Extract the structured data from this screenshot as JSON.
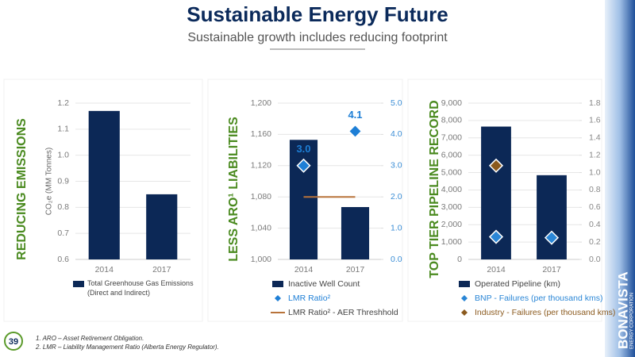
{
  "header": {
    "title": "Sustainable Energy Future",
    "subtitle": "Sustainable growth includes reducing footprint"
  },
  "chart_data": [
    {
      "type": "bar",
      "side_title": "REDUCING EMISSIONS",
      "y_label": "CO₂e (MM Tonnes)",
      "categories": [
        "2014",
        "2017"
      ],
      "series": [
        {
          "name": "Total Greenhouse Gas Emissions (Direct and Indirect)",
          "type": "bar",
          "color": "#0c2856",
          "values": [
            1.17,
            0.85
          ]
        }
      ],
      "ylim": [
        0.6,
        1.2
      ],
      "yticks": [
        0.6,
        0.7,
        0.8,
        0.9,
        {
          "value": 1,
          "label": "1.0"
        },
        1.1,
        1.2
      ],
      "grid": true
    },
    {
      "type": "bar",
      "side_title": "LESS ARO¹ LIABILITIES",
      "categories": [
        "2014",
        "2017"
      ],
      "series": [
        {
          "name": "Inactive Well Count",
          "type": "bar",
          "color": "#0c2856",
          "values": [
            1153,
            1067
          ]
        },
        {
          "name": "LMR Ratio²",
          "type": "scatter",
          "axis": "y2",
          "color": "#1e7fd6",
          "values": [
            3.0,
            4.1
          ],
          "value_labels": [
            "3.0",
            "4.1"
          ]
        },
        {
          "name": "LMR Ratio² - AER Threshhold",
          "type": "line",
          "axis": "y2",
          "color": "#b8733a",
          "values": [
            2,
            2
          ]
        }
      ],
      "ylim": [
        1000,
        1200
      ],
      "yticks": [
        {
          "value": 1000,
          "label": "1,000"
        },
        {
          "value": 1040,
          "label": "1,040"
        },
        {
          "value": 1080,
          "label": "1,080"
        },
        {
          "value": 1120,
          "label": "1,120"
        },
        {
          "value": 1160,
          "label": "1,160"
        },
        {
          "value": 1200,
          "label": "1,200"
        }
      ],
      "y2lim": [
        0,
        5
      ],
      "y2ticks": [
        {
          "value": 0,
          "label": "0.0"
        },
        {
          "value": 1,
          "label": "1.0"
        },
        {
          "value": 2,
          "label": "2.0"
        },
        {
          "value": 3,
          "label": "3.0"
        },
        {
          "value": 4,
          "label": "4.0"
        },
        {
          "value": 5,
          "label": "5.0"
        }
      ],
      "y2tick_color": "#3b8ed6",
      "grid": true
    },
    {
      "type": "bar",
      "side_title": "TOP TIER PIPELINE RECORD",
      "categories": [
        "2014",
        "2017"
      ],
      "series": [
        {
          "name": "Operated Pipeline (km)",
          "type": "bar",
          "color": "#0c2856",
          "values": [
            7650,
            4850
          ]
        },
        {
          "name": "BNP - Failures (per thousand kms)",
          "type": "scatter",
          "axis": "y2",
          "color": "#2a86d6",
          "values": [
            0.26,
            0.25
          ]
        },
        {
          "name": "Industry - Failures (per thousand kms)",
          "type": "scatter",
          "axis": "y2",
          "color": "#8b5a1e",
          "values": [
            1.08,
            null
          ]
        }
      ],
      "ylim": [
        0,
        9000
      ],
      "yticks": [
        0,
        {
          "value": 1000,
          "label": "1,000"
        },
        {
          "value": 2000,
          "label": "2,000"
        },
        {
          "value": 3000,
          "label": "3,000"
        },
        {
          "value": 4000,
          "label": "4,000"
        },
        {
          "value": 5000,
          "label": "5,000"
        },
        {
          "value": 6000,
          "label": "6,000"
        },
        {
          "value": 7000,
          "label": "7,000"
        },
        {
          "value": 8000,
          "label": "8,000"
        },
        {
          "value": 9000,
          "label": "9,000"
        }
      ],
      "y2lim": [
        0,
        1.8
      ],
      "y2ticks": [
        {
          "value": 0,
          "label": "0.0"
        },
        0.2,
        0.4,
        0.6,
        0.8,
        {
          "value": 1,
          "label": "1.0"
        },
        1.2,
        1.4,
        1.6,
        1.8
      ],
      "y2tick_color": "#888888",
      "grid": true
    }
  ],
  "footer": {
    "page": "39",
    "notes": [
      "1. ARO – Asset Retirement Obligation.",
      "2. LMR – Liability Management Ratio (Alberta Energy Regulator)."
    ]
  },
  "logo": {
    "name": "BONAVISTA",
    "tagline": "ENERGY CORPORATION"
  }
}
